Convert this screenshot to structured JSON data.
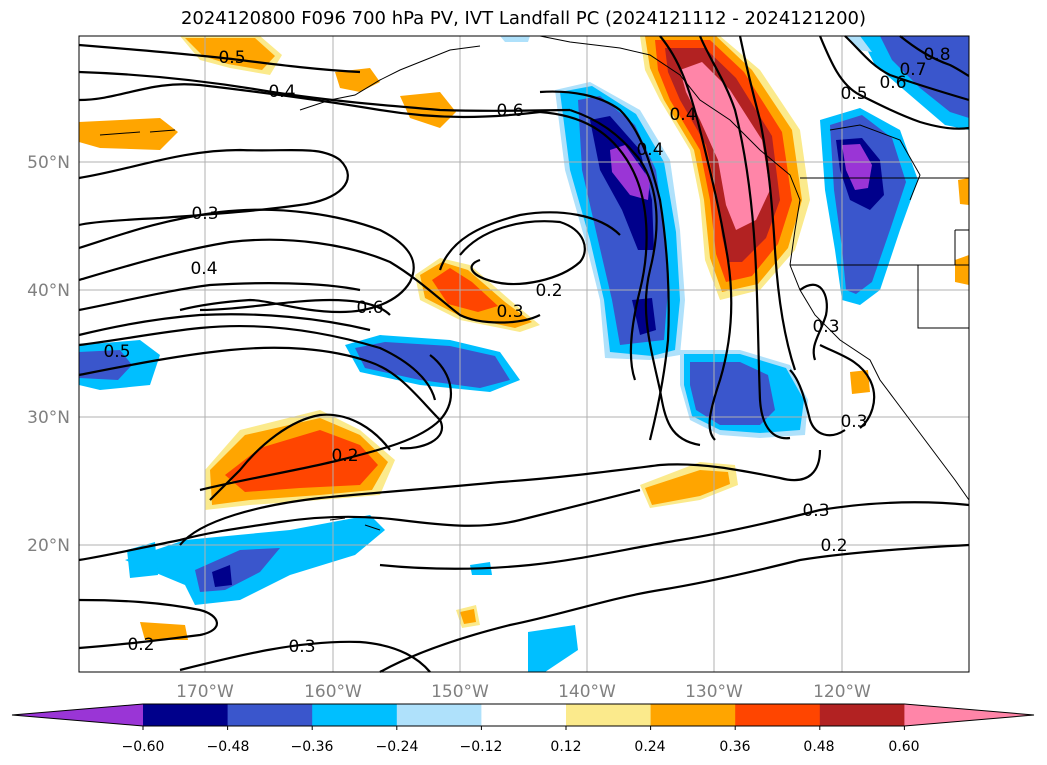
{
  "title": "2024120800 F096 700 hPa PV, IVT Landfall PC (2024121112 - 2024121200)",
  "map": {
    "lon_labels": [
      "170°W",
      "160°W",
      "150°W",
      "140°W",
      "130°W",
      "120°W"
    ],
    "lat_labels": [
      "50°N",
      "40°N",
      "30°N",
      "20°N"
    ],
    "contour_labels": [
      "0.5",
      "0.4",
      "0.6",
      "0.3",
      "0.4",
      "0.6",
      "0.5",
      "0.2",
      "0.3",
      "0.2",
      "0.3",
      "0.2",
      "0.3",
      "0.3",
      "0.2",
      "0.5",
      "0.6",
      "0.7",
      "0.8",
      "0.4",
      "0.4",
      "0.3"
    ]
  },
  "colorbar": {
    "ticks": [
      "−0.60",
      "−0.48",
      "−0.36",
      "−0.24",
      "−0.12",
      "0.12",
      "0.24",
      "0.36",
      "0.48",
      "0.60"
    ],
    "colors": [
      "#9a35d6",
      "#00008b",
      "#3a56cc",
      "#00bfff",
      "#afe1fb",
      "#ffffff",
      "#fbea8c",
      "#ffa500",
      "#ff4500",
      "#b22222",
      "#ff85a8",
      "#ff85a8"
    ]
  }
}
